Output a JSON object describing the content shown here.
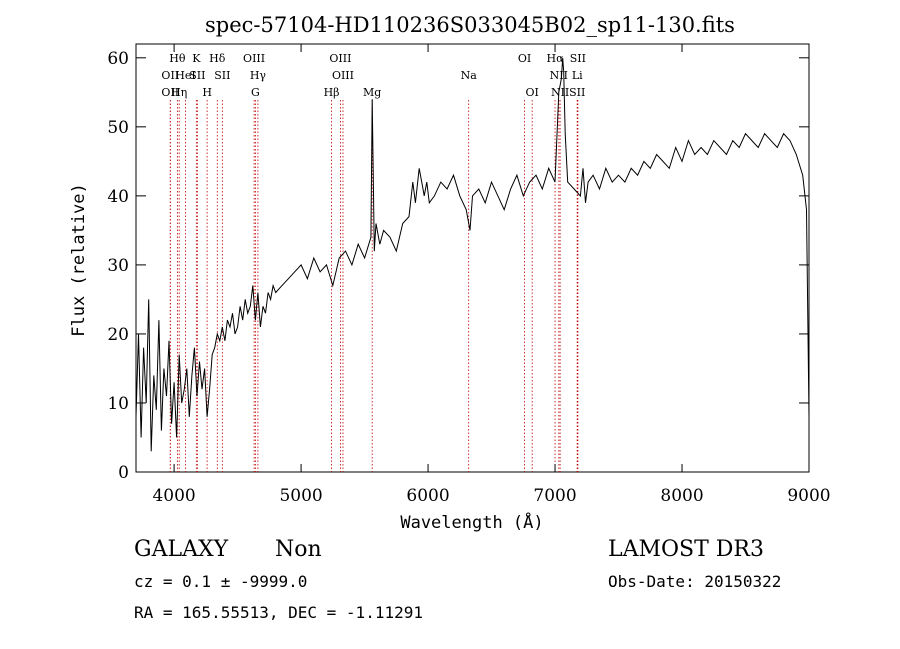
{
  "chart_data": {
    "type": "line",
    "title": "spec-57104-HD110236S033045B02_sp11-130.fits",
    "xlabel": "Wavelength (Å)",
    "ylabel": "Flux (relative)",
    "xlim": [
      3700,
      9000
    ],
    "ylim": [
      0,
      62
    ],
    "xticks": [
      4000,
      5000,
      6000,
      7000,
      8000,
      9000
    ],
    "yticks": [
      0,
      10,
      20,
      30,
      40,
      50,
      60
    ],
    "line_color": "#000000",
    "marker_color": "#c00000",
    "series": [
      {
        "x": [
          3700,
          3720,
          3740,
          3760,
          3780,
          3800,
          3820,
          3840,
          3860,
          3880,
          3900,
          3920,
          3940,
          3960,
          3980,
          4000,
          4020,
          4040,
          4060,
          4080,
          4100,
          4120,
          4140,
          4160,
          4180,
          4200,
          4220,
          4240,
          4260,
          4280,
          4300,
          4320,
          4340,
          4360,
          4380,
          4400,
          4420,
          4440,
          4460,
          4480,
          4500,
          4520,
          4540,
          4560,
          4580,
          4600,
          4620,
          4640,
          4660,
          4680,
          4700,
          4720,
          4740,
          4760,
          4780,
          4800,
          4850,
          4900,
          4950,
          5000,
          5050,
          5100,
          5150,
          5200,
          5250,
          5300,
          5350,
          5400,
          5450,
          5500,
          5550,
          5560,
          5577,
          5590,
          5620,
          5650,
          5700,
          5750,
          5800,
          5850,
          5880,
          5900,
          5930,
          5960,
          5970,
          5990,
          6010,
          6050,
          6100,
          6150,
          6200,
          6250,
          6300,
          6330,
          6350,
          6400,
          6450,
          6500,
          6550,
          6600,
          6650,
          6700,
          6750,
          6800,
          6850,
          6900,
          6950,
          7000,
          7030,
          7050,
          7060,
          7068,
          7080,
          7100,
          7150,
          7200,
          7220,
          7240,
          7260,
          7300,
          7350,
          7400,
          7450,
          7500,
          7550,
          7600,
          7650,
          7700,
          7750,
          7800,
          7850,
          7900,
          7950,
          8000,
          8050,
          8100,
          8150,
          8200,
          8250,
          8300,
          8350,
          8400,
          8450,
          8500,
          8550,
          8600,
          8650,
          8700,
          8750,
          8800,
          8850,
          8900,
          8950,
          8980,
          9000
        ],
        "y": [
          8,
          20,
          5,
          18,
          10,
          25,
          3,
          14,
          9,
          22,
          6,
          15,
          11,
          19,
          7,
          13,
          5,
          17,
          10,
          12,
          15,
          8,
          14,
          18,
          11,
          16,
          12,
          15,
          8,
          12,
          17,
          18,
          20,
          19,
          21,
          19,
          22,
          21,
          23,
          20,
          21,
          24,
          22,
          25,
          23,
          24,
          27,
          22,
          26,
          21,
          24,
          23,
          26,
          25,
          27,
          26,
          27,
          28,
          29,
          30,
          28,
          31,
          29,
          30,
          27,
          31,
          32,
          30,
          33,
          31,
          34,
          54,
          32,
          36,
          33,
          35,
          34,
          32,
          36,
          37,
          42,
          39,
          44,
          41,
          40,
          42,
          39,
          40,
          42,
          41,
          43,
          40,
          38,
          35,
          40,
          41,
          39,
          42,
          40,
          38,
          41,
          43,
          40,
          42,
          43,
          41,
          44,
          42,
          55,
          57,
          60,
          58,
          49,
          42,
          41,
          40,
          44,
          39,
          42,
          43,
          41,
          44,
          42,
          43,
          42,
          44,
          43,
          45,
          44,
          46,
          45,
          44,
          47,
          45,
          48,
          46,
          47,
          46,
          48,
          47,
          46,
          48,
          47,
          49,
          48,
          47,
          49,
          48,
          47,
          49,
          48,
          46,
          43,
          38,
          8
        ]
      }
    ],
    "lines": [
      {
        "x": 3970,
        "label": "OII",
        "row": 2
      },
      {
        "x": 3970,
        "label": "OII",
        "row": 3
      },
      {
        "x": 4026,
        "label": "Hθ",
        "row": 1
      },
      {
        "x": 4040,
        "label": "Hη",
        "row": 3
      },
      {
        "x": 4090,
        "label": "HeI",
        "row": 2
      },
      {
        "x": 4175,
        "label": "K",
        "row": 1
      },
      {
        "x": 4183,
        "label": "SII",
        "row": 2
      },
      {
        "x": 4260,
        "label": "H",
        "row": 3
      },
      {
        "x": 4340,
        "label": "Hδ",
        "row": 1
      },
      {
        "x": 4380,
        "label": "SII",
        "row": 2
      },
      {
        "x": 4630,
        "label": "OIII",
        "row": 1
      },
      {
        "x": 4660,
        "label": "Hγ",
        "row": 2
      },
      {
        "x": 4640,
        "label": "G",
        "row": 3
      },
      {
        "x": 5240,
        "label": "Hβ",
        "row": 3
      },
      {
        "x": 5310,
        "label": "OIII",
        "row": 1
      },
      {
        "x": 5330,
        "label": "OIII",
        "row": 2
      },
      {
        "x": 5560,
        "label": "Mg",
        "row": 3
      },
      {
        "x": 6320,
        "label": "Na",
        "row": 2
      },
      {
        "x": 6760,
        "label": "OI",
        "row": 1
      },
      {
        "x": 6820,
        "label": "OI",
        "row": 3
      },
      {
        "x": 7000,
        "label": "Hα",
        "row": 1
      },
      {
        "x": 7030,
        "label": "NII",
        "row": 2
      },
      {
        "x": 7040,
        "label": "NII",
        "row": 3
      },
      {
        "x": 7180,
        "label": "SII",
        "row": 1
      },
      {
        "x": 7175,
        "label": "Li",
        "row": 2
      },
      {
        "x": 7175,
        "label": "SII",
        "row": 3
      }
    ]
  },
  "footer": {
    "class_label": "GALAXY",
    "subclass": "Non",
    "survey": "LAMOST DR3",
    "cz": "cz = 0.1 ± -9999.0",
    "obs_date": "Obs-Date: 20150322",
    "coords": "RA = 165.55513, DEC =  -1.11291"
  }
}
